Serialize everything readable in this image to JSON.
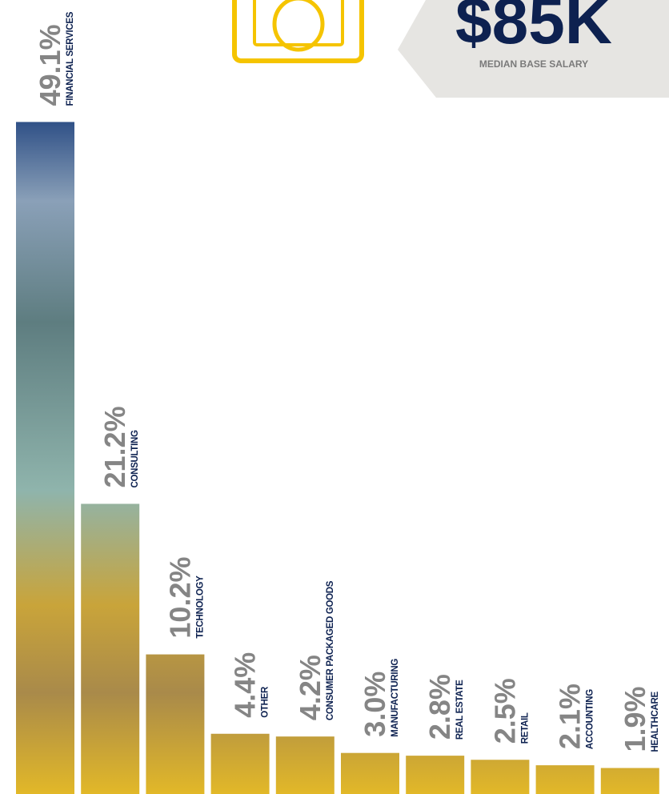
{
  "chart_data": {
    "type": "bar",
    "categories": [
      "FINANCIAL SERVICES",
      "CONSULTING",
      "TECHNOLOGY",
      "OTHER",
      "CONSUMER PACKAGED GOODS",
      "MANUFACTURING",
      "REAL ESTATE",
      "RETAIL",
      "ACCOUNTING",
      "HEALTHCARE"
    ],
    "values": [
      49.1,
      21.2,
      10.2,
      4.4,
      4.2,
      3.0,
      2.8,
      2.5,
      2.1,
      1.9
    ],
    "value_labels": [
      "49.1%",
      "21.2%",
      "10.2%",
      "4.4%",
      "4.2%",
      "3.0%",
      "2.8%",
      "2.5%",
      "2.1%",
      "1.9%"
    ],
    "salary": {
      "value": "$85K",
      "label": "MEDIAN BASE SALARY"
    }
  }
}
